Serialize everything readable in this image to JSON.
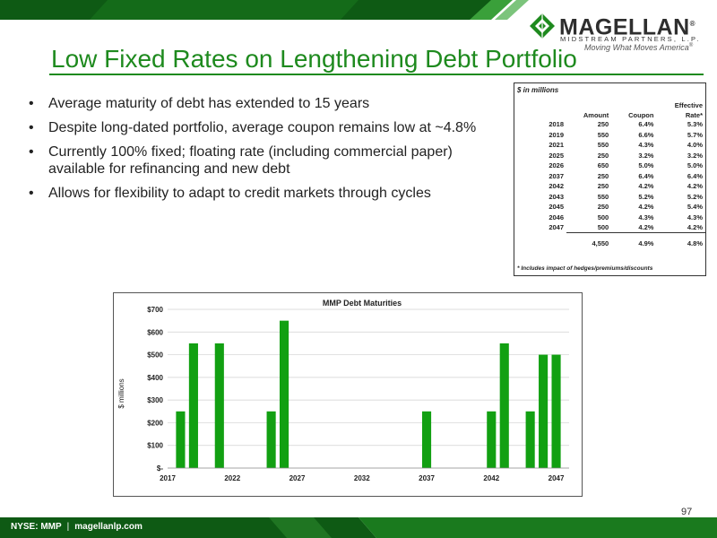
{
  "header": {
    "logo_name": "MAGELLAN",
    "logo_registered": "®",
    "logo_subtitle": "MIDSTREAM PARTNERS, L.P.",
    "logo_tagline": "Moving What Moves America",
    "logo_tagline_mark": "®",
    "logo_icon": "magellan-diamond-icon",
    "brand_green": "#1e8a1e",
    "dark_green": "#0e5a14"
  },
  "title": "Low Fixed Rates on Lengthening Debt Portfolio",
  "bullets": [
    "Average maturity of debt has extended to 15 years",
    "Despite long-dated portfolio, average coupon remains low at ~4.8%",
    "Currently 100% fixed; floating rate (including commercial paper) available for refinancing and new debt",
    "Allows for flexibility to adapt to credit markets through cycles"
  ],
  "debt_table": {
    "caption": "$ in millions",
    "headers": {
      "amount": "Amount",
      "coupon": "Coupon",
      "rate_line1": "Effective",
      "rate_line2": "Rate*"
    },
    "rows": [
      {
        "year": "2018",
        "amount": "250",
        "coupon": "6.4%",
        "rate": "5.3%"
      },
      {
        "year": "2019",
        "amount": "550",
        "coupon": "6.6%",
        "rate": "5.7%"
      },
      {
        "year": "2021",
        "amount": "550",
        "coupon": "4.3%",
        "rate": "4.0%"
      },
      {
        "year": "2025",
        "amount": "250",
        "coupon": "3.2%",
        "rate": "3.2%"
      },
      {
        "year": "2026",
        "amount": "650",
        "coupon": "5.0%",
        "rate": "5.0%"
      },
      {
        "year": "2037",
        "amount": "250",
        "coupon": "6.4%",
        "rate": "6.4%"
      },
      {
        "year": "2042",
        "amount": "250",
        "coupon": "4.2%",
        "rate": "4.2%"
      },
      {
        "year": "2043",
        "amount": "550",
        "coupon": "5.2%",
        "rate": "5.2%"
      },
      {
        "year": "2045",
        "amount": "250",
        "coupon": "4.2%",
        "rate": "5.4%"
      },
      {
        "year": "2046",
        "amount": "500",
        "coupon": "4.3%",
        "rate": "4.3%"
      },
      {
        "year": "2047",
        "amount": "500",
        "coupon": "4.2%",
        "rate": "4.2%"
      }
    ],
    "total": {
      "amount": "4,550",
      "coupon": "4.9%",
      "rate": "4.8%"
    },
    "footnote": "* Includes impact of hedges/premiums/discounts"
  },
  "chart_data": {
    "type": "bar",
    "title": "MMP Debt Maturities",
    "ylabel": "$ millions",
    "xlabel": "",
    "x": [
      2018,
      2019,
      2021,
      2025,
      2026,
      2037,
      2042,
      2043,
      2045,
      2046,
      2047
    ],
    "values": [
      250,
      550,
      550,
      250,
      650,
      250,
      250,
      550,
      250,
      500,
      500
    ],
    "xlim": [
      2017,
      2048
    ],
    "ylim": [
      0,
      700
    ],
    "xticks": [
      2017,
      2022,
      2027,
      2032,
      2037,
      2042,
      2047
    ],
    "yticks": [
      0,
      100,
      200,
      300,
      400,
      500,
      600,
      700
    ],
    "ytick_labels": [
      "$-",
      "$100",
      "$200",
      "$300",
      "$400",
      "$500",
      "$600",
      "$700"
    ],
    "grid": true,
    "bar_color": "#12a012"
  },
  "footer": {
    "ticker": "NYSE: MMP",
    "separator": "|",
    "website": "magellanlp.com",
    "page_number": "97"
  }
}
